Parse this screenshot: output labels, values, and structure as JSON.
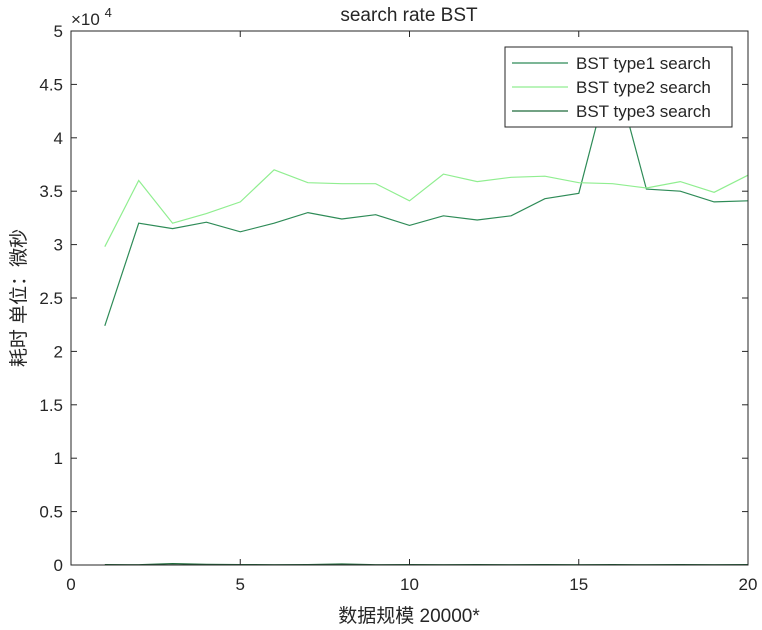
{
  "chart_data": {
    "type": "line",
    "title": "search rate  BST",
    "xlabel": "数据规模 20000*",
    "ylabel": "耗时 单位：微秒",
    "y_exponent_label": "×10",
    "y_exponent": "4",
    "xlim": [
      0,
      20
    ],
    "ylim": [
      0,
      50000
    ],
    "x_ticks": [
      0,
      5,
      10,
      15,
      20
    ],
    "x_tick_labels": [
      "0",
      "5",
      "10",
      "15",
      "20"
    ],
    "y_ticks": [
      0,
      5000,
      10000,
      15000,
      20000,
      25000,
      30000,
      35000,
      40000,
      45000,
      50000
    ],
    "y_tick_labels": [
      "0",
      "0.5",
      "1",
      "1.5",
      "2",
      "2.5",
      "3",
      "3.5",
      "4",
      "4.5",
      "5"
    ],
    "grid": false,
    "legend_position": "top-right",
    "x": [
      1,
      2,
      3,
      4,
      5,
      6,
      7,
      8,
      9,
      10,
      11,
      12,
      13,
      14,
      15,
      16,
      17,
      18,
      19,
      20
    ],
    "series": [
      {
        "name": "BST type1 search",
        "color": "#2e8b57",
        "values": [
          22400,
          32000,
          31500,
          32100,
          31200,
          32000,
          33000,
          32400,
          32800,
          31800,
          32700,
          32300,
          32700,
          34300,
          34800,
          47000,
          35200,
          35000,
          34000,
          34100
        ]
      },
      {
        "name": "BST type2 search",
        "color": "#90ee90",
        "values": [
          29800,
          36000,
          32000,
          32900,
          34000,
          37000,
          35800,
          35700,
          35700,
          34100,
          36600,
          35900,
          36300,
          36400,
          35800,
          35700,
          35300,
          35900,
          34900,
          36500
        ]
      },
      {
        "name": "BST type3 search",
        "color": "#1f6b3a",
        "values": [
          40,
          30,
          130,
          60,
          40,
          30,
          40,
          90,
          30,
          40,
          30,
          40,
          30,
          40,
          30,
          40,
          30,
          40,
          30,
          40
        ]
      }
    ]
  }
}
